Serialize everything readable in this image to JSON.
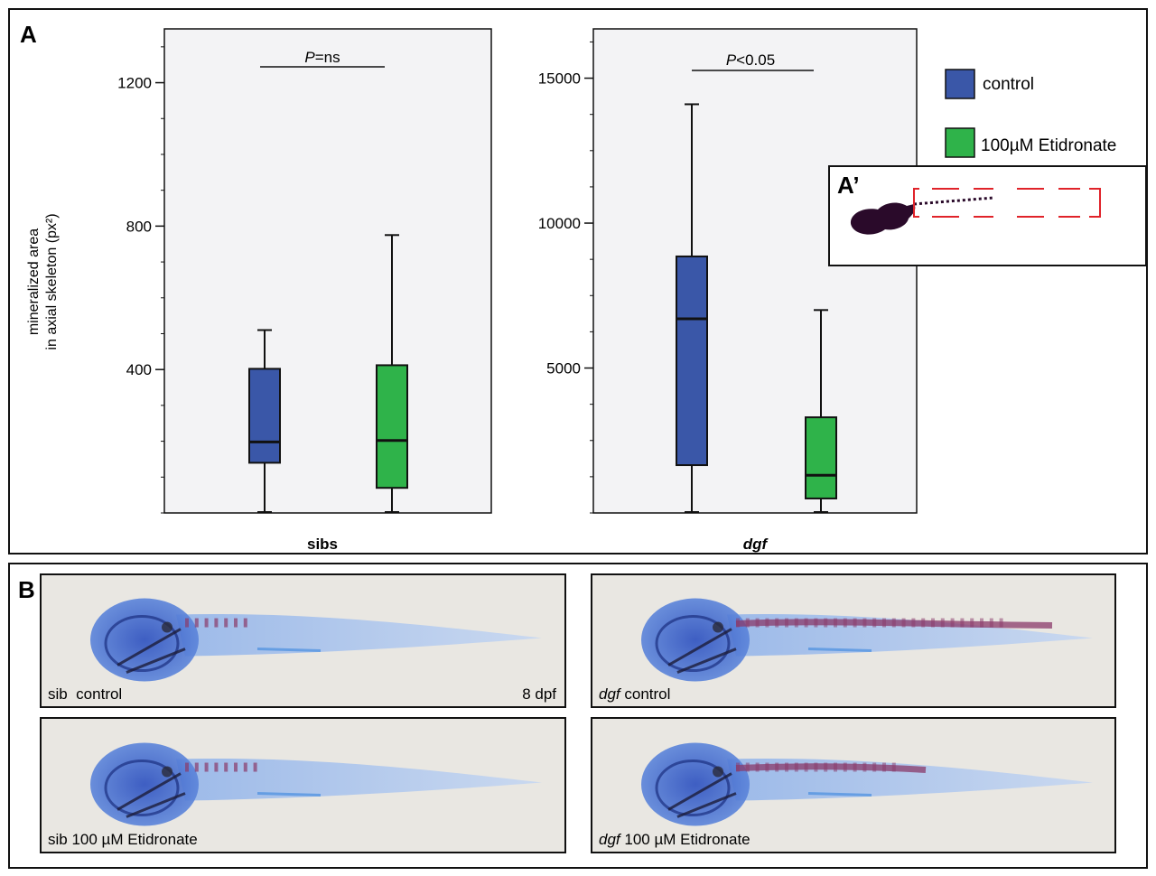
{
  "panel_labels": {
    "a": "A",
    "a_prime": "A’",
    "b": "B"
  },
  "chart_data": [
    {
      "type": "box",
      "group": "sibs",
      "ylabel_line1": "mineralized area",
      "ylabel_line2": "in axial skeleton (px²)",
      "ylim": [
        0,
        1350
      ],
      "yticks": [
        400,
        800,
        1200
      ],
      "significance": {
        "prefix": "P",
        "suffix": "=ns"
      },
      "boxes": [
        {
          "series": "control",
          "whisker_low": 0,
          "q1": 140,
          "median": 198,
          "q3": 402,
          "whisker_high": 510
        },
        {
          "series": "100µM Etidronate",
          "whisker_low": 0,
          "q1": 70,
          "median": 202,
          "q3": 412,
          "whisker_high": 775
        }
      ]
    },
    {
      "type": "box",
      "group": "dgf",
      "ylim": [
        0,
        16700
      ],
      "yticks": [
        5000,
        10000,
        15000
      ],
      "significance": {
        "prefix": "P",
        "suffix": "<0.05"
      },
      "boxes": [
        {
          "series": "control",
          "whisker_low": 0,
          "q1": 1650,
          "median": 6700,
          "q3": 8850,
          "whisker_high": 14100
        },
        {
          "series": "100µM Etidronate",
          "whisker_low": 0,
          "q1": 500,
          "median": 1300,
          "q3": 3300,
          "whisker_high": 7000
        }
      ]
    }
  ],
  "legend": [
    {
      "name": "control",
      "color": "#3a57a8"
    },
    {
      "name": "100µM Etidronate",
      "color": "#2fb34a"
    }
  ],
  "colors": {
    "control": "#3a57a8",
    "etidronate": "#2fb34a",
    "plot_bg": "#f3f3f5",
    "roi_box": "#e0232a",
    "fish_stain": "#3f63c8",
    "bone_stain": "#8a3a6a"
  },
  "fish_panels": [
    {
      "caption_prefix": "sib",
      "caption_italic": "",
      "caption_rest": "  control",
      "stage": "8 dpf",
      "genotype": "sib"
    },
    {
      "caption_prefix": "",
      "caption_italic": "dgf",
      "caption_rest": " control",
      "stage": "",
      "genotype": "dgf"
    },
    {
      "caption_prefix": "sib",
      "caption_italic": "",
      "caption_rest": " 100 µM Etidronate",
      "stage": "",
      "genotype": "sib"
    },
    {
      "caption_prefix": "",
      "caption_italic": "dgf",
      "caption_rest": " 100 µM Etidronate",
      "stage": "",
      "genotype": "dgf"
    }
  ]
}
